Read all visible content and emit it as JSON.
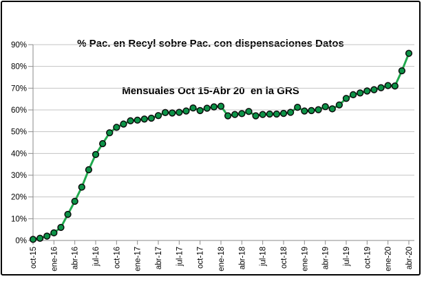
{
  "window": {
    "background": "#FFFFFF",
    "border_color": "#000000"
  },
  "chart_data": {
    "type": "line",
    "title_line1": "% Pac. en Recyl sobre Pac. con dispensaciones Datos",
    "title_line2": "Mensuales Oct 15-Abr 20  en la GRS",
    "x": [
      "oct-15",
      "nov-15",
      "dic-15",
      "ene-16",
      "feb-16",
      "mar-16",
      "abr-16",
      "may-16",
      "jun-16",
      "jul-16",
      "ago-16",
      "sep-16",
      "oct-16",
      "nov-16",
      "dic-16",
      "ene-17",
      "feb-17",
      "mar-17",
      "abr-17",
      "may-17",
      "jun-17",
      "jul-17",
      "ago-17",
      "sep-17",
      "oct-17",
      "nov-17",
      "dic-17",
      "ene-18",
      "feb-18",
      "mar-18",
      "abr-18",
      "may-18",
      "jun-18",
      "jul-18",
      "ago-18",
      "sep-18",
      "oct-18",
      "nov-18",
      "dic-18",
      "ene-19",
      "feb-19",
      "mar-19",
      "abr-19",
      "may-19",
      "jun-19",
      "jul-19",
      "ago-19",
      "sep-19",
      "oct-19",
      "nov-19",
      "dic-19",
      "ene-20",
      "feb-20",
      "mar-20",
      "abr-20"
    ],
    "values": [
      0.5,
      1.0,
      2.0,
      3.5,
      6.0,
      12.0,
      18.0,
      24.5,
      32.5,
      39.5,
      44.5,
      49.5,
      52.0,
      53.5,
      55.0,
      55.3,
      55.8,
      56.2,
      57.4,
      58.8,
      58.6,
      58.9,
      59.5,
      60.9,
      59.7,
      60.8,
      61.4,
      61.7,
      57.3,
      57.9,
      58.3,
      59.3,
      57.3,
      57.9,
      58.1,
      58.1,
      58.4,
      58.9,
      61.2,
      59.5,
      59.7,
      60.1,
      61.5,
      60.5,
      62.3,
      65.3,
      67.0,
      67.8,
      68.7,
      69.3,
      70.2,
      71.2,
      71.0,
      78.0,
      86.0
    ],
    "x_tick_labels": [
      "oct-15",
      "ene-16",
      "abr-16",
      "jul-16",
      "oct-16",
      "ene-17",
      "abr-17",
      "jul-17",
      "oct-17",
      "ene-18",
      "abr-18",
      "jul-18",
      "oct-18",
      "ene-19",
      "abr-19",
      "jul-19",
      "oct-19",
      "ene-20",
      "abr-20"
    ],
    "x_tick_every": 3,
    "y_tick_labels": [
      "0%",
      "10%",
      "20%",
      "30%",
      "40%",
      "50%",
      "60%",
      "70%",
      "80%",
      "90%"
    ],
    "ylim": [
      0,
      90
    ],
    "y_tick_step": 10,
    "grid": true,
    "legend": "none",
    "line_color": "#21A94E",
    "marker_color": "#0C9347",
    "marker_edge_color": "#0B0B0B",
    "gridline_color": "#C3C3C3",
    "axis_color": "#8A8A8A",
    "text_color": "#000000"
  }
}
